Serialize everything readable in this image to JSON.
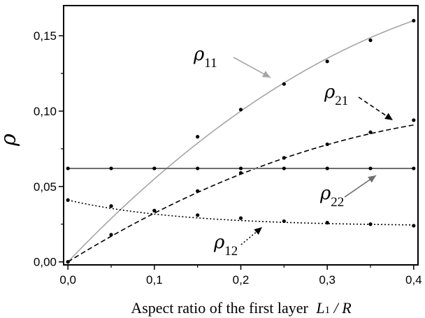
{
  "chart_data": {
    "type": "line",
    "xlabel": "Aspect ratio of the first layer",
    "xlabel_var": "L",
    "xlabel_var_sub": "1",
    "xlabel_rest": " / R",
    "ylabel": "ρ",
    "xlim": [
      -0.005,
      0.405
    ],
    "ylim": [
      -0.002,
      0.17
    ],
    "x_ticks": [
      0.0,
      0.1,
      0.2,
      0.3,
      0.4
    ],
    "x_tick_labels": [
      "0,0",
      "0,1",
      "0,2",
      "0,3",
      "0,4"
    ],
    "y_ticks": [
      0.0,
      0.05,
      0.1,
      0.15
    ],
    "y_tick_labels": [
      "0,00",
      "0,05",
      "0,10",
      "0,15"
    ],
    "grid": false,
    "legend": "none",
    "x": [
      0.0,
      0.05,
      0.1,
      0.15,
      0.2,
      0.25,
      0.3,
      0.35,
      0.4
    ],
    "series": [
      {
        "label_main": "ρ",
        "label_sub": "11",
        "style": "solid",
        "color": "#a6a6a6",
        "values": [
          0.0,
          0.037,
          0.062,
          0.083,
          0.101,
          0.118,
          0.133,
          0.147,
          0.16
        ]
      },
      {
        "label_main": "ρ",
        "label_sub": "21",
        "style": "dashed",
        "color": "#000000",
        "values": [
          0.0,
          0.018,
          0.034,
          0.047,
          0.059,
          0.069,
          0.078,
          0.086,
          0.094
        ]
      },
      {
        "label_main": "ρ",
        "label_sub": "22",
        "style": "solid",
        "color": "#6e6e6e",
        "values": [
          0.062,
          0.062,
          0.062,
          0.062,
          0.062,
          0.062,
          0.062,
          0.062,
          0.062
        ]
      },
      {
        "label_main": "ρ",
        "label_sub": "12",
        "style": "dotted",
        "color": "#000000",
        "values": [
          0.041,
          0.037,
          0.034,
          0.031,
          0.029,
          0.027,
          0.026,
          0.025,
          0.024
        ]
      }
    ]
  }
}
